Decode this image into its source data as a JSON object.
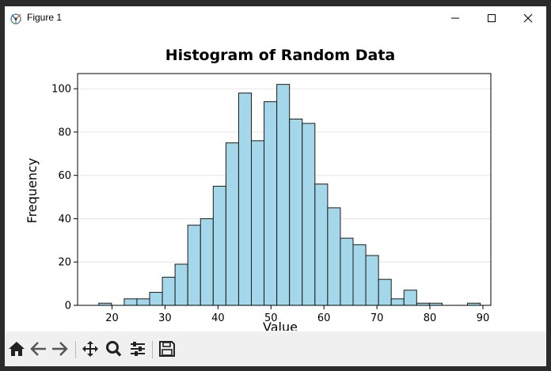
{
  "window": {
    "title": "Figure 1"
  },
  "toolbar": {
    "buttons": [
      {
        "name": "home-button",
        "icon": "home-icon"
      },
      {
        "name": "back-button",
        "icon": "back-arrow-icon"
      },
      {
        "name": "forward-button",
        "icon": "forward-arrow-icon"
      },
      {
        "name": "pan-button",
        "icon": "move-icon"
      },
      {
        "name": "zoom-button",
        "icon": "zoom-icon"
      },
      {
        "name": "configure-subplots-button",
        "icon": "sliders-icon"
      },
      {
        "name": "save-button",
        "icon": "save-icon"
      }
    ]
  },
  "colors": {
    "bar_fill": "#a5d7ea",
    "bar_edge": "#1a1a1a",
    "grid": "#e6e6e6"
  },
  "chart_data": {
    "type": "bar",
    "title": "Histogram of Random Data",
    "xlabel": "Value",
    "ylabel": "Frequency",
    "grid": "y-only, light",
    "xlim": [
      13.5,
      91.5
    ],
    "ylim": [
      0,
      107
    ],
    "xticks": [
      20,
      30,
      40,
      50,
      60,
      70,
      80,
      90
    ],
    "yticks": [
      0,
      20,
      40,
      60,
      80,
      100
    ],
    "bin_width": 2.4,
    "bins": [
      {
        "x0": 17.5,
        "count": 1
      },
      {
        "x0": 19.9,
        "count": 0
      },
      {
        "x0": 22.3,
        "count": 3
      },
      {
        "x0": 24.7,
        "count": 3
      },
      {
        "x0": 27.1,
        "count": 6
      },
      {
        "x0": 29.5,
        "count": 13
      },
      {
        "x0": 31.9,
        "count": 19
      },
      {
        "x0": 34.3,
        "count": 37
      },
      {
        "x0": 36.7,
        "count": 40
      },
      {
        "x0": 39.1,
        "count": 55
      },
      {
        "x0": 41.5,
        "count": 75
      },
      {
        "x0": 43.9,
        "count": 98
      },
      {
        "x0": 46.3,
        "count": 76
      },
      {
        "x0": 48.7,
        "count": 94
      },
      {
        "x0": 51.1,
        "count": 102
      },
      {
        "x0": 53.5,
        "count": 86
      },
      {
        "x0": 55.9,
        "count": 84
      },
      {
        "x0": 58.3,
        "count": 56
      },
      {
        "x0": 60.7,
        "count": 45
      },
      {
        "x0": 63.1,
        "count": 31
      },
      {
        "x0": 65.5,
        "count": 28
      },
      {
        "x0": 67.9,
        "count": 23
      },
      {
        "x0": 70.3,
        "count": 12
      },
      {
        "x0": 72.7,
        "count": 3
      },
      {
        "x0": 75.1,
        "count": 7
      },
      {
        "x0": 77.5,
        "count": 1
      },
      {
        "x0": 79.9,
        "count": 1
      },
      {
        "x0": 82.3,
        "count": 0
      },
      {
        "x0": 84.7,
        "count": 0
      },
      {
        "x0": 87.1,
        "count": 1
      }
    ]
  }
}
